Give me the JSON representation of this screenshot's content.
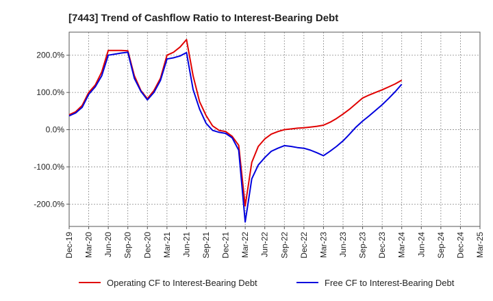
{
  "chart_data": {
    "type": "line",
    "title": "[7443]  Trend of Cashflow Ratio to Interest-Bearing Debt",
    "xlabel": "",
    "ylabel": "",
    "x_ticks": [
      "Dec-19",
      "Mar-20",
      "Jun-20",
      "Sep-20",
      "Dec-20",
      "Mar-21",
      "Jun-21",
      "Sep-21",
      "Dec-21",
      "Mar-22",
      "Jun-22",
      "Sep-22",
      "Dec-22",
      "Mar-23",
      "Jun-23",
      "Sep-23",
      "Dec-23",
      "Mar-24",
      "Jun-24",
      "Sep-24",
      "Dec-24",
      "Mar-25"
    ],
    "y_ticks": [
      {
        "value": 200,
        "label": "200.0%"
      },
      {
        "value": 100,
        "label": "100.0%"
      },
      {
        "value": 0,
        "label": "0.0%"
      },
      {
        "value": -100,
        "label": "-100.0%"
      },
      {
        "value": -200,
        "label": "-200.0%"
      }
    ],
    "ylim": [
      -260,
      262
    ],
    "xlim": [
      "2019-12",
      "2025-03"
    ],
    "grid": true,
    "legend_position": "bottom",
    "series": [
      {
        "name": "Operating CF to Interest-Bearing Debt",
        "color": "#e00000",
        "points": [
          [
            "2019-12",
            40
          ],
          [
            "2020-01",
            48
          ],
          [
            "2020-02",
            65
          ],
          [
            "2020-03",
            100
          ],
          [
            "2020-04",
            120
          ],
          [
            "2020-05",
            155
          ],
          [
            "2020-06",
            213
          ],
          [
            "2020-07",
            213
          ],
          [
            "2020-08",
            213
          ],
          [
            "2020-09",
            212
          ],
          [
            "2020-10",
            145
          ],
          [
            "2020-11",
            105
          ],
          [
            "2020-12",
            83
          ],
          [
            "2021-01",
            105
          ],
          [
            "2021-02",
            138
          ],
          [
            "2021-03",
            200
          ],
          [
            "2021-04",
            208
          ],
          [
            "2021-05",
            222
          ],
          [
            "2021-06",
            242
          ],
          [
            "2021-07",
            145
          ],
          [
            "2021-08",
            75
          ],
          [
            "2021-09",
            38
          ],
          [
            "2021-10",
            10
          ],
          [
            "2021-11",
            -2
          ],
          [
            "2021-12",
            -5
          ],
          [
            "2022-01",
            -18
          ],
          [
            "2022-02",
            -42
          ],
          [
            "2022-03",
            -205
          ],
          [
            "2022-04",
            -88
          ],
          [
            "2022-05",
            -45
          ],
          [
            "2022-06",
            -25
          ],
          [
            "2022-07",
            -12
          ],
          [
            "2022-08",
            -5
          ],
          [
            "2022-09",
            0
          ],
          [
            "2022-10",
            2
          ],
          [
            "2022-11",
            4
          ],
          [
            "2022-12",
            5
          ],
          [
            "2023-01",
            7
          ],
          [
            "2023-02",
            9
          ],
          [
            "2023-03",
            12
          ],
          [
            "2023-04",
            20
          ],
          [
            "2023-05",
            30
          ],
          [
            "2023-06",
            42
          ],
          [
            "2023-07",
            55
          ],
          [
            "2023-08",
            70
          ],
          [
            "2023-09",
            85
          ],
          [
            "2023-10",
            93
          ],
          [
            "2023-11",
            100
          ],
          [
            "2023-12",
            107
          ],
          [
            "2024-01",
            115
          ],
          [
            "2024-02",
            123
          ],
          [
            "2024-03",
            133
          ]
        ]
      },
      {
        "name": "Free CF to Interest-Bearing Debt",
        "color": "#0000dd",
        "points": [
          [
            "2019-12",
            37
          ],
          [
            "2020-01",
            45
          ],
          [
            "2020-02",
            60
          ],
          [
            "2020-03",
            95
          ],
          [
            "2020-04",
            115
          ],
          [
            "2020-05",
            145
          ],
          [
            "2020-06",
            200
          ],
          [
            "2020-07",
            203
          ],
          [
            "2020-08",
            206
          ],
          [
            "2020-09",
            208
          ],
          [
            "2020-10",
            138
          ],
          [
            "2020-11",
            103
          ],
          [
            "2020-12",
            80
          ],
          [
            "2021-01",
            100
          ],
          [
            "2021-02",
            132
          ],
          [
            "2021-03",
            190
          ],
          [
            "2021-04",
            193
          ],
          [
            "2021-05",
            198
          ],
          [
            "2021-06",
            207
          ],
          [
            "2021-07",
            108
          ],
          [
            "2021-08",
            55
          ],
          [
            "2021-09",
            17
          ],
          [
            "2021-10",
            -2
          ],
          [
            "2021-11",
            -7
          ],
          [
            "2021-12",
            -10
          ],
          [
            "2022-01",
            -22
          ],
          [
            "2022-02",
            -55
          ],
          [
            "2022-03",
            -248
          ],
          [
            "2022-04",
            -132
          ],
          [
            "2022-05",
            -95
          ],
          [
            "2022-06",
            -75
          ],
          [
            "2022-07",
            -58
          ],
          [
            "2022-08",
            -50
          ],
          [
            "2022-09",
            -43
          ],
          [
            "2022-10",
            -45
          ],
          [
            "2022-11",
            -48
          ],
          [
            "2022-12",
            -50
          ],
          [
            "2023-01",
            -55
          ],
          [
            "2023-02",
            -62
          ],
          [
            "2023-03",
            -70
          ],
          [
            "2023-04",
            -58
          ],
          [
            "2023-05",
            -45
          ],
          [
            "2023-06",
            -30
          ],
          [
            "2023-07",
            -12
          ],
          [
            "2023-08",
            7
          ],
          [
            "2023-09",
            23
          ],
          [
            "2023-10",
            37
          ],
          [
            "2023-11",
            52
          ],
          [
            "2023-12",
            67
          ],
          [
            "2024-01",
            84
          ],
          [
            "2024-02",
            102
          ],
          [
            "2024-03",
            122
          ]
        ]
      }
    ]
  }
}
